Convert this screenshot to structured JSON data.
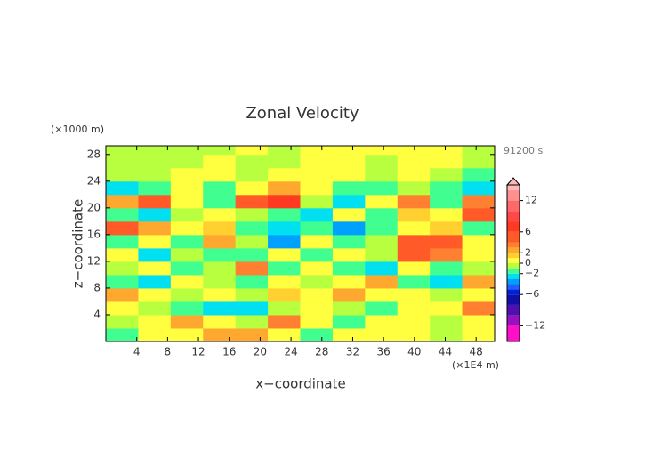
{
  "chart_data": {
    "type": "heatmap",
    "title": "Zonal Velocity",
    "y_unit": "(×1000 m)",
    "x_unit": "(×1E4 m)",
    "time_label": "91200 s",
    "xlabel": "x−coordinate",
    "ylabel": "z−coordinate",
    "xlim": [
      0,
      50.4
    ],
    "ylim": [
      0,
      29.3
    ],
    "xticks": [
      4,
      8,
      12,
      16,
      20,
      24,
      28,
      32,
      36,
      40,
      44,
      48
    ],
    "yticks": [
      4,
      8,
      12,
      16,
      20,
      24,
      28
    ],
    "x": [
      2.1,
      6.3,
      10.5,
      14.7,
      18.9,
      23.1,
      27.3,
      31.5,
      35.7,
      39.9,
      44.1,
      48.3
    ],
    "z": [
      1,
      3,
      5,
      7,
      9,
      11,
      13,
      15,
      17,
      19,
      21,
      23,
      25,
      27,
      29
    ],
    "values": [
      [
        -1.5,
        0.5,
        0.5,
        2.5,
        2.5,
        0.5,
        -1.5,
        0.5,
        0.5,
        0.5,
        -0.5,
        0.5
      ],
      [
        -0.5,
        0.5,
        2.5,
        0.5,
        -0.5,
        3,
        0.5,
        -1.5,
        0.5,
        0.5,
        -0.5,
        0.5
      ],
      [
        0.5,
        -0.5,
        -1.5,
        -2.5,
        -2.5,
        -0.5,
        0.5,
        -0.5,
        -1.5,
        0.5,
        0.5,
        3
      ],
      [
        2.5,
        0.5,
        -0.5,
        0.5,
        -0.5,
        1.5,
        0.5,
        2.5,
        0.5,
        0.5,
        -0.5,
        0.5
      ],
      [
        -1.5,
        -2.5,
        0.5,
        -0.5,
        -1.5,
        0.5,
        -0.5,
        0.5,
        2.5,
        -1.5,
        -2.5,
        2.5
      ],
      [
        -0.5,
        0.5,
        -1.5,
        -0.5,
        3,
        -1.5,
        0.5,
        -1.5,
        -2.5,
        0.5,
        -1.5,
        -0.5
      ],
      [
        0.5,
        -2.5,
        -0.5,
        -1.5,
        -1.5,
        0.5,
        -1.5,
        0.5,
        -0.5,
        4,
        3,
        0.5
      ],
      [
        -1.5,
        0.5,
        -1.5,
        2.5,
        -0.5,
        -4,
        0.5,
        -1.5,
        -0.5,
        5,
        4,
        0.5
      ],
      [
        5,
        2.5,
        0.5,
        1.5,
        -1.5,
        -2.5,
        -1.5,
        -3.5,
        -1.5,
        0.5,
        1.5,
        -1.5
      ],
      [
        -1.5,
        -2.5,
        -0.5,
        0.5,
        -0.5,
        -1.5,
        -2.5,
        0.5,
        -1.5,
        1.5,
        0.5,
        5
      ],
      [
        2.5,
        4,
        0.5,
        -1.5,
        5,
        6,
        -0.5,
        -2.5,
        0.5,
        3,
        -1.5,
        3
      ],
      [
        -2.5,
        -1.5,
        0.5,
        -1.5,
        0.5,
        2.5,
        0.5,
        -1.5,
        -1.5,
        -0.5,
        -1.5,
        -2.5
      ],
      [
        -0.5,
        -0.5,
        0.5,
        0.5,
        -0.5,
        0.5,
        0.5,
        0.5,
        -0.5,
        0.5,
        -0.5,
        -1.5
      ],
      [
        -0.5,
        -0.5,
        -0.5,
        0.5,
        -0.5,
        -0.5,
        0.5,
        0.5,
        -0.5,
        0.5,
        0.5,
        -0.5
      ],
      [
        -0.5,
        -0.5,
        -0.5,
        -0.5,
        0.5,
        -0.5,
        0.5,
        0.5,
        0.5,
        0.5,
        0.5,
        -0.5
      ]
    ],
    "color_levels": [
      -15,
      -12,
      -10,
      -8,
      -6,
      -5,
      -4,
      -3,
      -2,
      -1,
      0,
      1,
      2,
      3,
      4,
      6,
      8,
      10,
      12,
      14,
      15
    ],
    "colors": [
      "#ff10c8",
      "#9a10c0",
      "#5010b0",
      "#1010a8",
      "#0020e0",
      "#2060ff",
      "#00a0ff",
      "#00e0f0",
      "#40ff90",
      "#b8ff40",
      "#ffff40",
      "#ffd030",
      "#ffa830",
      "#ff8030",
      "#ff5a28",
      "#ff3a20",
      "#ff4848",
      "#ff6868",
      "#ff9090",
      "#ffb8b8"
    ],
    "cbar_ticks": [
      12,
      6,
      2,
      0,
      {
        "value": -2,
        "label": "−2"
      },
      {
        "value": -6,
        "label": "−6"
      },
      {
        "value": -12,
        "label": "−12"
      }
    ]
  }
}
